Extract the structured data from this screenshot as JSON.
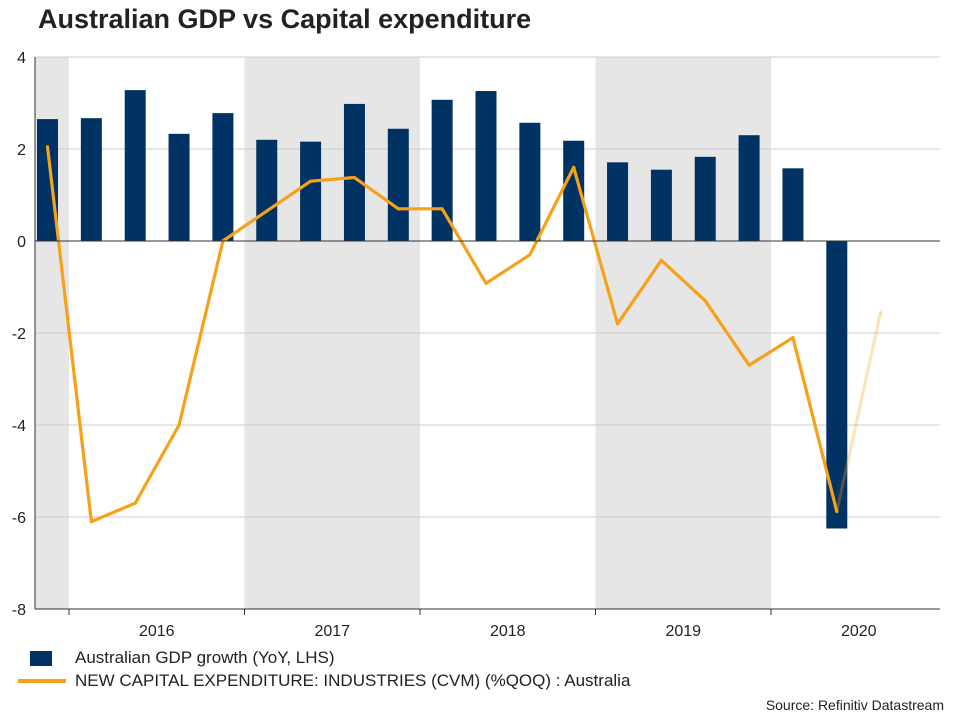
{
  "title": "Australian GDP vs Capital expenditure",
  "source": "Source: Refinitiv Datastream",
  "colors": {
    "bar": "#003263",
    "line": "#f7a11a",
    "shade": "#e6e6e6",
    "grid": "#cccccc"
  },
  "chart_data": {
    "type": "bar+line",
    "title": "Australian GDP vs Capital expenditure",
    "ylim": [
      -8,
      4
    ],
    "yticks": [
      4,
      2,
      0,
      -2,
      -4,
      -6,
      -8
    ],
    "year_labels": [
      "2016",
      "2017",
      "2018",
      "2019",
      "2020"
    ],
    "shaded_years": [
      "2015",
      "2017",
      "2019"
    ],
    "quarters": [
      "2015 Q4",
      "2016 Q1",
      "2016 Q2",
      "2016 Q3",
      "2016 Q4",
      "2017 Q1",
      "2017 Q2",
      "2017 Q3",
      "2017 Q4",
      "2018 Q1",
      "2018 Q2",
      "2018 Q3",
      "2018 Q4",
      "2019 Q1",
      "2019 Q2",
      "2019 Q3",
      "2019 Q4",
      "2020 Q1",
      "2020 Q2",
      "2020 Q3"
    ],
    "series": [
      {
        "name": "Australian GDP growth (YoY, LHS)",
        "kind": "bar",
        "values": [
          2.65,
          2.67,
          3.28,
          2.33,
          2.78,
          2.2,
          2.16,
          2.98,
          2.44,
          3.07,
          3.26,
          2.57,
          2.18,
          1.71,
          1.55,
          1.83,
          2.3,
          1.58,
          -6.25,
          null
        ]
      },
      {
        "name": "NEW CAPITAL EXPENDITURE: INDUSTRIES (CVM) (%QOQ) : Australia",
        "kind": "line",
        "values": [
          2.05,
          -6.1,
          -5.7,
          -4.0,
          0.0,
          0.65,
          1.3,
          1.38,
          0.7,
          0.7,
          -0.92,
          -0.3,
          1.6,
          -1.8,
          -0.42,
          -1.3,
          -2.7,
          -2.1,
          -5.88,
          -1.55
        ]
      }
    ]
  },
  "legend": {
    "bar_label": "Australian GDP growth (YoY, LHS)",
    "line_label": "NEW CAPITAL EXPENDITURE: INDUSTRIES (CVM) (%QOQ) : Australia"
  }
}
